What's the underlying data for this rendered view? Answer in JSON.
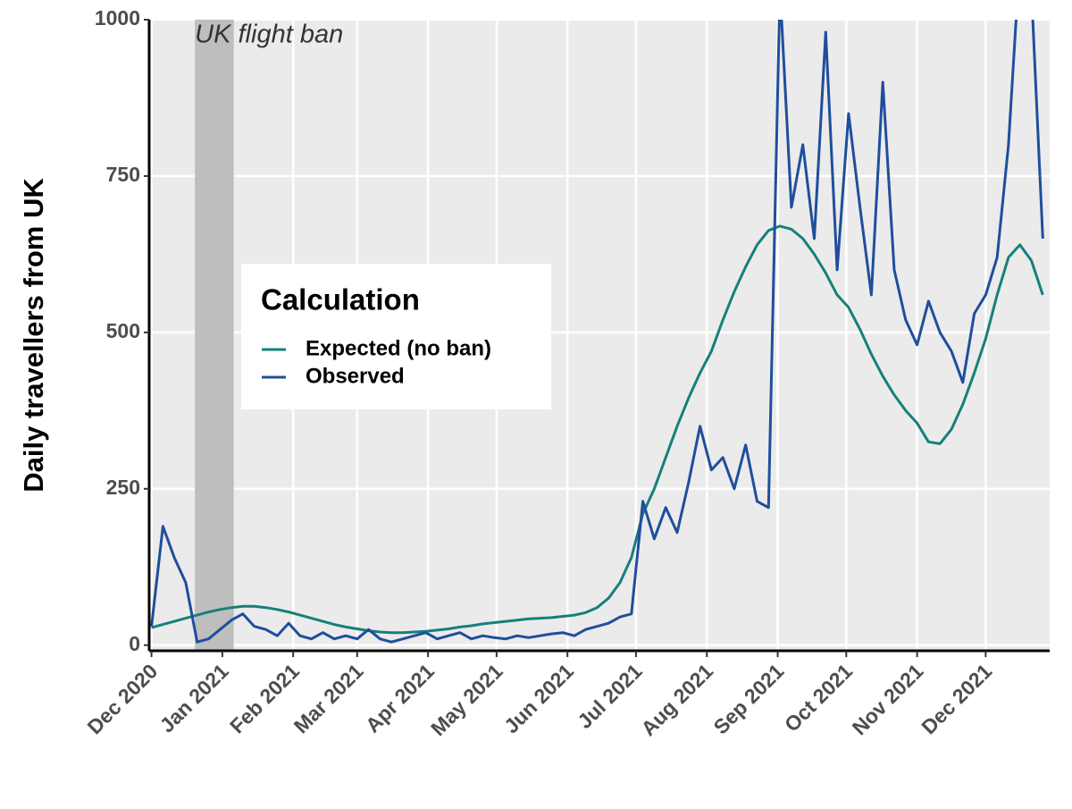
{
  "chart_data": {
    "type": "line",
    "ylabel": "Daily travellers from UK",
    "legend_title": "Calculation",
    "legend_position": "center-left",
    "grid": true,
    "annotations": [
      {
        "text": "UK flight ban",
        "xmin": "2020-12-20",
        "xmax": "2021-01-06"
      }
    ],
    "xlim": [
      "2020-11-30",
      "2021-12-29"
    ],
    "ylim": [
      -9,
      1000
    ],
    "yticks": [
      0,
      250,
      500,
      750,
      1000
    ],
    "xticks": [
      {
        "value": "2020-12-01",
        "label": "Dec 2020"
      },
      {
        "value": "2021-01-01",
        "label": "Jan 2021"
      },
      {
        "value": "2021-02-01",
        "label": "Feb 2021"
      },
      {
        "value": "2021-03-01",
        "label": "Mar 2021"
      },
      {
        "value": "2021-04-01",
        "label": "Apr 2021"
      },
      {
        "value": "2021-05-01",
        "label": "May 2021"
      },
      {
        "value": "2021-06-01",
        "label": "Jun 2021"
      },
      {
        "value": "2021-07-01",
        "label": "Jul 2021"
      },
      {
        "value": "2021-08-01",
        "label": "Aug 2021"
      },
      {
        "value": "2021-09-01",
        "label": "Sep 2021"
      },
      {
        "value": "2021-10-01",
        "label": "Oct 2021"
      },
      {
        "value": "2021-11-01",
        "label": "Nov 2021"
      },
      {
        "value": "2021-12-01",
        "label": "Dec 2021"
      }
    ],
    "x": [
      "2020-12-01",
      "2020-12-06",
      "2020-12-11",
      "2020-12-16",
      "2020-12-21",
      "2020-12-26",
      "2020-12-31",
      "2021-01-05",
      "2021-01-10",
      "2021-01-15",
      "2021-01-20",
      "2021-01-25",
      "2021-01-30",
      "2021-02-04",
      "2021-02-09",
      "2021-02-14",
      "2021-02-19",
      "2021-02-24",
      "2021-03-01",
      "2021-03-06",
      "2021-03-11",
      "2021-03-16",
      "2021-03-21",
      "2021-03-26",
      "2021-03-31",
      "2021-04-05",
      "2021-04-10",
      "2021-04-15",
      "2021-04-20",
      "2021-04-25",
      "2021-04-30",
      "2021-05-05",
      "2021-05-10",
      "2021-05-15",
      "2021-05-20",
      "2021-05-25",
      "2021-05-30",
      "2021-06-04",
      "2021-06-09",
      "2021-06-14",
      "2021-06-19",
      "2021-06-24",
      "2021-06-29",
      "2021-07-04",
      "2021-07-09",
      "2021-07-14",
      "2021-07-19",
      "2021-07-24",
      "2021-07-29",
      "2021-08-03",
      "2021-08-08",
      "2021-08-13",
      "2021-08-18",
      "2021-08-23",
      "2021-08-28",
      "2021-09-02",
      "2021-09-07",
      "2021-09-12",
      "2021-09-17",
      "2021-09-22",
      "2021-09-27",
      "2021-10-02",
      "2021-10-07",
      "2021-10-12",
      "2021-10-17",
      "2021-10-22",
      "2021-10-27",
      "2021-11-01",
      "2021-11-06",
      "2021-11-11",
      "2021-11-16",
      "2021-11-21",
      "2021-11-26",
      "2021-12-01",
      "2021-12-06",
      "2021-12-11",
      "2021-12-16",
      "2021-12-21",
      "2021-12-26"
    ],
    "series": [
      {
        "name": "Expected (no ban)",
        "color": "#16807a",
        "values": [
          28,
          33,
          38,
          43,
          48,
          53,
          57,
          60,
          62,
          62,
          60,
          57,
          53,
          48,
          43,
          38,
          33,
          29,
          26,
          23,
          21,
          20,
          20,
          21,
          22,
          24,
          26,
          29,
          31,
          34,
          36,
          38,
          40,
          42,
          43,
          44,
          46,
          48,
          52,
          60,
          75,
          100,
          140,
          210,
          250,
          300,
          350,
          395,
          435,
          470,
          520,
          565,
          605,
          640,
          663,
          670,
          665,
          650,
          625,
          595,
          560,
          540,
          505,
          465,
          430,
          400,
          375,
          355,
          325,
          322,
          345,
          385,
          435,
          490,
          560,
          620,
          640,
          615,
          560
        ]
      },
      {
        "name": "Observed",
        "color": "#1f4e9c",
        "values": [
          30,
          190,
          140,
          100,
          5,
          10,
          25,
          40,
          50,
          30,
          25,
          15,
          35,
          15,
          10,
          20,
          10,
          15,
          10,
          25,
          10,
          5,
          10,
          15,
          20,
          10,
          15,
          20,
          10,
          15,
          12,
          10,
          15,
          12,
          15,
          18,
          20,
          15,
          25,
          30,
          35,
          45,
          50,
          230,
          170,
          220,
          180,
          260,
          350,
          280,
          300,
          250,
          320,
          230,
          220,
          1050,
          700,
          800,
          650,
          980,
          600,
          850,
          700,
          560,
          900,
          600,
          520,
          480,
          550,
          500,
          470,
          420,
          530,
          560,
          620,
          800,
          1100,
          1050,
          650
        ]
      }
    ]
  }
}
